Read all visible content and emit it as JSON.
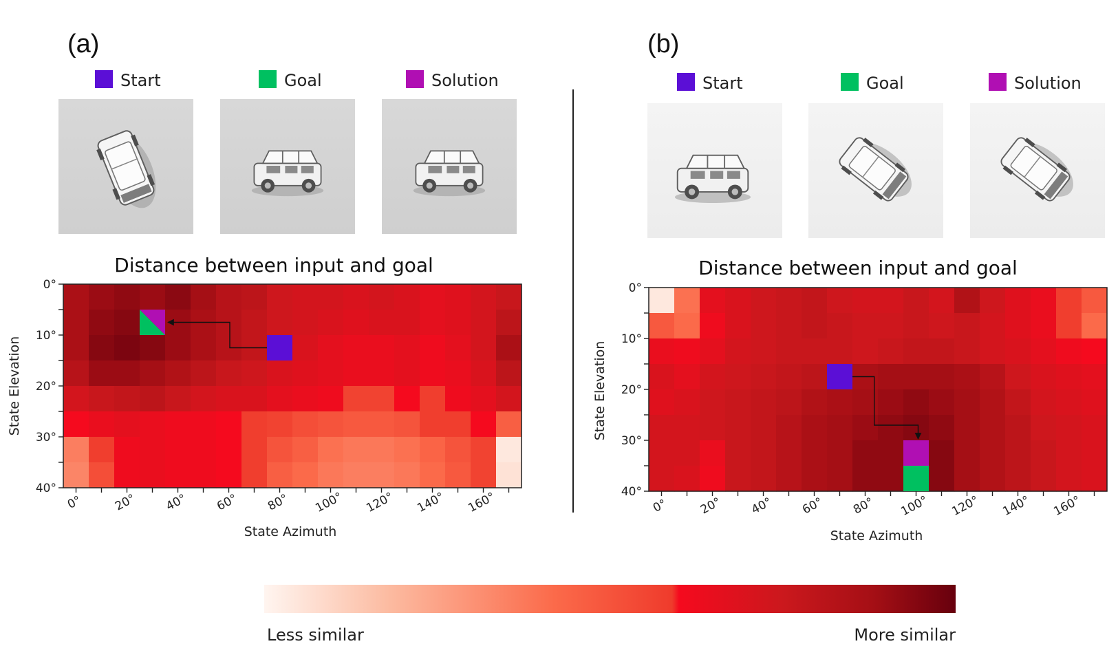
{
  "figure": {
    "colorbar": {
      "low_label": "Less similar",
      "high_label": "More similar",
      "colors": [
        "#fff5f0",
        "#fcbba1",
        "#fb6a4a",
        "#ef3b2c",
        "#f50a1e",
        "#cb181d",
        "#a50f15",
        "#67000d"
      ]
    },
    "legend_colors": {
      "start": "#5b0fd6",
      "goal": "#00c060",
      "solution": "#b00fb3"
    }
  },
  "chart_data": [
    {
      "type": "heatmap",
      "panel_label": "(a)",
      "title": "Distance between input and goal",
      "xlabel": "State Azimuth",
      "ylabel": "State Elevation",
      "x_ticks": [
        "0°",
        "20°",
        "40°",
        "60°",
        "80°",
        "100°",
        "120°",
        "140°",
        "160°"
      ],
      "y_ticks": [
        "0°",
        "10°",
        "20°",
        "30°",
        "40°"
      ],
      "legend": [
        "Start",
        "Goal",
        "Solution"
      ],
      "images": [
        "start-car-view",
        "goal-car-view",
        "solution-car-view"
      ],
      "grid": {
        "cols": 18,
        "rows": 8,
        "azimuth_step": 10,
        "elevation_step": 5
      },
      "similarity": [
        [
          0.86,
          0.9,
          0.92,
          0.9,
          0.93,
          0.88,
          0.82,
          0.8,
          0.74,
          0.72,
          0.72,
          0.7,
          0.72,
          0.7,
          0.66,
          0.68,
          0.72,
          0.76
        ],
        [
          0.86,
          0.92,
          0.94,
          0.92,
          0.9,
          0.86,
          0.82,
          0.78,
          0.74,
          0.72,
          0.7,
          0.68,
          0.7,
          0.7,
          0.66,
          0.68,
          0.72,
          0.8
        ],
        [
          0.86,
          0.94,
          0.96,
          0.94,
          0.9,
          0.86,
          0.82,
          0.78,
          0.72,
          0.7,
          0.66,
          0.64,
          0.64,
          0.66,
          0.62,
          0.66,
          0.72,
          0.86
        ],
        [
          0.82,
          0.9,
          0.9,
          0.88,
          0.84,
          0.8,
          0.76,
          0.74,
          0.7,
          0.68,
          0.66,
          0.64,
          0.64,
          0.66,
          0.62,
          0.64,
          0.7,
          0.8
        ],
        [
          0.72,
          0.76,
          0.78,
          0.8,
          0.76,
          0.72,
          0.7,
          0.7,
          0.66,
          0.64,
          0.62,
          0.56,
          0.56,
          0.6,
          0.58,
          0.62,
          0.66,
          0.72
        ],
        [
          0.6,
          0.64,
          0.66,
          0.64,
          0.62,
          0.62,
          0.6,
          0.58,
          0.56,
          0.52,
          0.5,
          0.48,
          0.48,
          0.5,
          0.58,
          0.58,
          0.6,
          0.46
        ],
        [
          0.36,
          0.58,
          0.62,
          0.64,
          0.62,
          0.62,
          0.6,
          0.58,
          0.5,
          0.46,
          0.4,
          0.38,
          0.38,
          0.4,
          0.44,
          0.5,
          0.56,
          0.04
        ],
        [
          0.34,
          0.52,
          0.62,
          0.64,
          0.62,
          0.62,
          0.6,
          0.58,
          0.46,
          0.42,
          0.38,
          0.36,
          0.36,
          0.38,
          0.42,
          0.48,
          0.56,
          0.06
        ]
      ],
      "start": {
        "azimuth": 80,
        "elevation": 10
      },
      "goal": {
        "azimuth": 30,
        "elevation": 5
      },
      "solution": {
        "azimuth": 30,
        "elevation": 5
      }
    },
    {
      "type": "heatmap",
      "panel_label": "(b)",
      "title": "Distance between input and goal",
      "xlabel": "State Azimuth",
      "ylabel": "State Elevation",
      "x_ticks": [
        "0°",
        "20°",
        "40°",
        "60°",
        "80°",
        "100°",
        "120°",
        "140°",
        "160°"
      ],
      "y_ticks": [
        "0°",
        "10°",
        "20°",
        "30°",
        "40°"
      ],
      "legend": [
        "Start",
        "Goal",
        "Solution"
      ],
      "images": [
        "start-car-view",
        "goal-car-view",
        "solution-car-view"
      ],
      "grid": {
        "cols": 18,
        "rows": 8,
        "azimuth_step": 10,
        "elevation_step": 5
      },
      "similarity": [
        [
          0.04,
          0.4,
          0.66,
          0.7,
          0.74,
          0.76,
          0.78,
          0.74,
          0.72,
          0.72,
          0.76,
          0.72,
          0.84,
          0.74,
          0.68,
          0.64,
          0.58,
          0.48
        ],
        [
          0.48,
          0.42,
          0.62,
          0.7,
          0.74,
          0.76,
          0.78,
          0.76,
          0.74,
          0.74,
          0.76,
          0.74,
          0.76,
          0.72,
          0.68,
          0.64,
          0.58,
          0.42
        ],
        [
          0.64,
          0.62,
          0.66,
          0.72,
          0.74,
          0.76,
          0.76,
          0.76,
          0.74,
          0.76,
          0.78,
          0.78,
          0.76,
          0.72,
          0.7,
          0.66,
          0.62,
          0.6
        ],
        [
          0.7,
          0.66,
          0.72,
          0.74,
          0.76,
          0.78,
          0.8,
          0.8,
          0.86,
          0.88,
          0.88,
          0.88,
          0.86,
          0.82,
          0.74,
          0.7,
          0.68,
          0.66
        ],
        [
          0.68,
          0.7,
          0.74,
          0.76,
          0.78,
          0.8,
          0.84,
          0.86,
          0.88,
          0.9,
          0.92,
          0.9,
          0.88,
          0.84,
          0.78,
          0.72,
          0.7,
          0.68
        ],
        [
          0.72,
          0.72,
          0.74,
          0.76,
          0.78,
          0.82,
          0.86,
          0.88,
          0.9,
          0.92,
          0.94,
          0.92,
          0.88,
          0.84,
          0.8,
          0.74,
          0.72,
          0.7
        ],
        [
          0.72,
          0.72,
          0.64,
          0.76,
          0.78,
          0.82,
          0.86,
          0.88,
          0.92,
          0.92,
          0.96,
          0.94,
          0.88,
          0.84,
          0.8,
          0.76,
          0.72,
          0.7
        ],
        [
          0.72,
          0.7,
          0.62,
          0.76,
          0.78,
          0.82,
          0.86,
          0.88,
          0.92,
          0.92,
          0.96,
          0.94,
          0.88,
          0.84,
          0.8,
          0.76,
          0.72,
          0.7
        ]
      ],
      "start": {
        "azimuth": 70,
        "elevation": 15
      },
      "goal": {
        "azimuth": 100,
        "elevation": 35
      },
      "solution": {
        "azimuth": 100,
        "elevation": 30
      }
    }
  ]
}
